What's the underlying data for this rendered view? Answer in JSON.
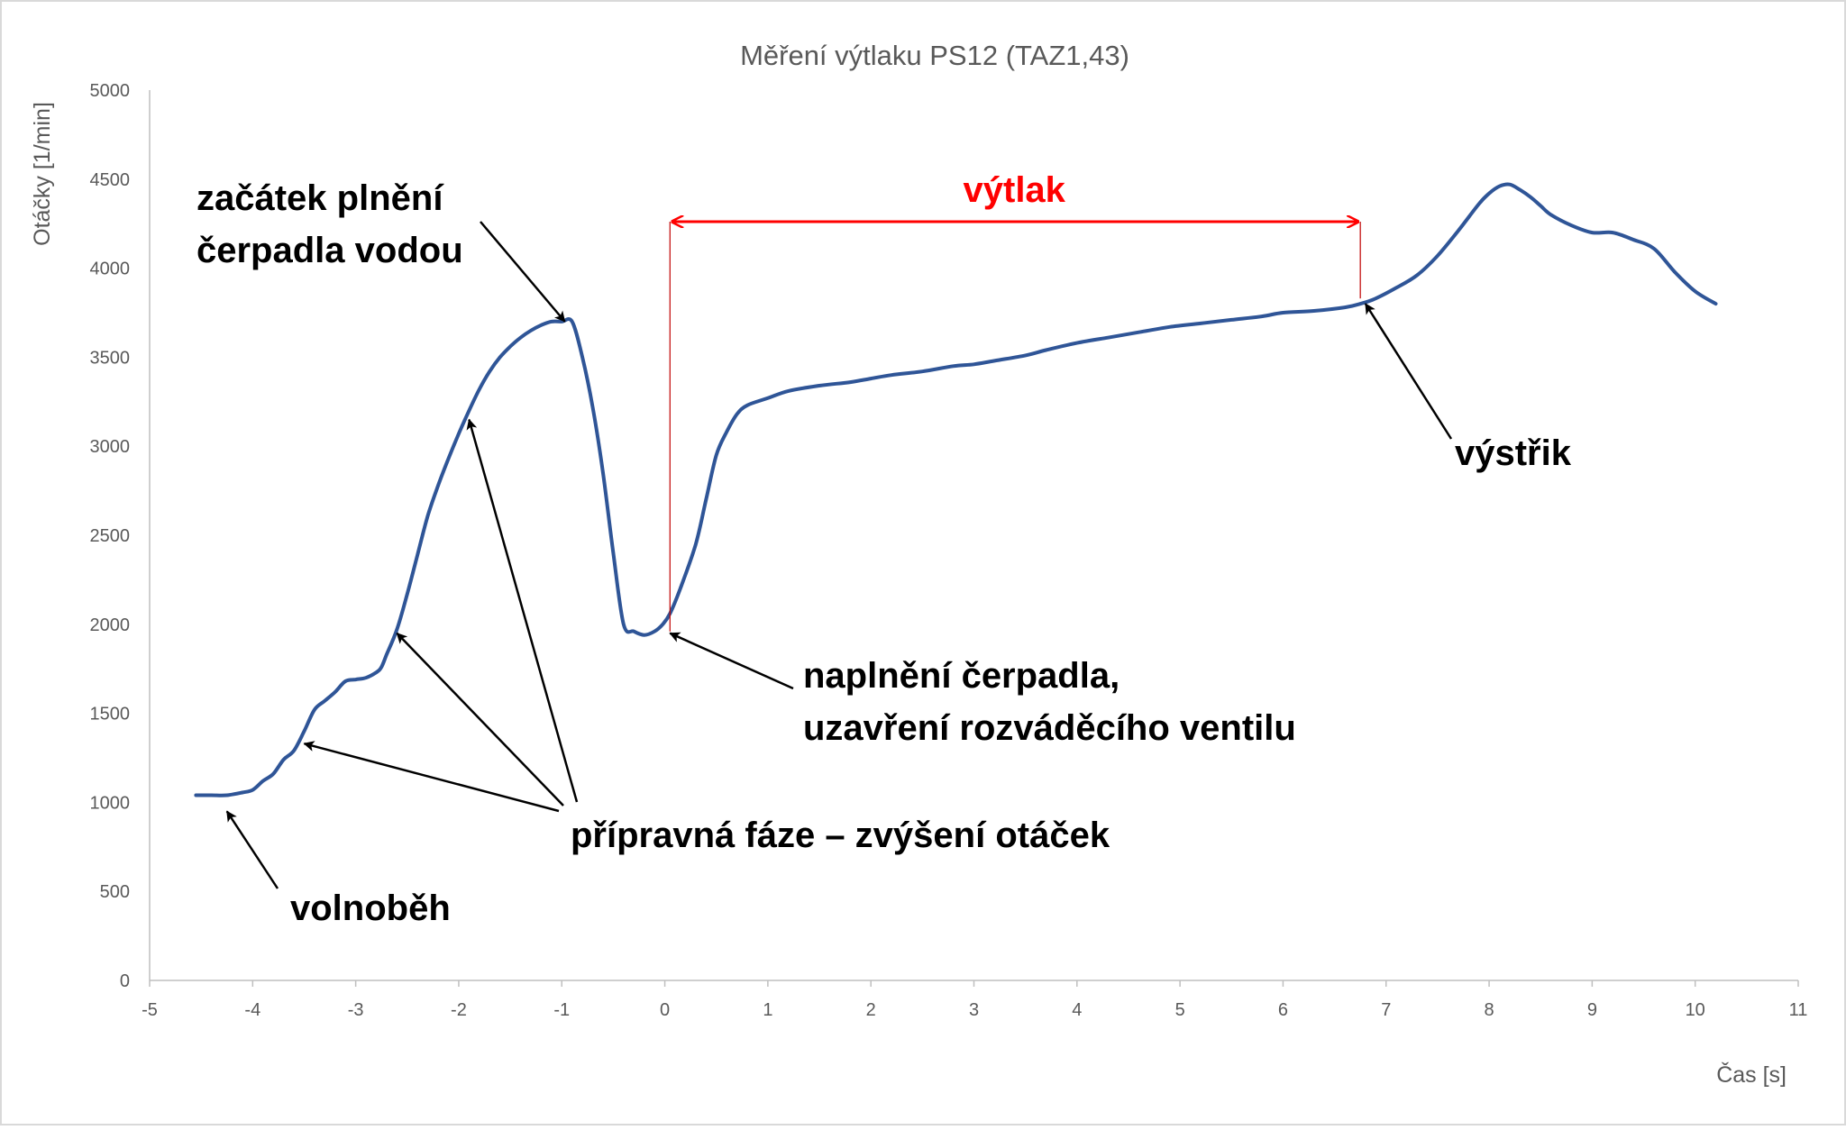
{
  "chart_data": {
    "type": "line",
    "title": "Měření výtlaku PS12 (TAZ1,43)",
    "xlabel": "Čas [s]",
    "ylabel": "Otáčky [1/min]",
    "xlim": [
      -5,
      11
    ],
    "ylim": [
      0,
      5000
    ],
    "xticks": [
      "-5",
      "-4",
      "-3",
      "-2",
      "-1",
      "0",
      "1",
      "2",
      "3",
      "4",
      "5",
      "6",
      "7",
      "8",
      "9",
      "10",
      "11"
    ],
    "yticks": [
      "0",
      "500",
      "1000",
      "1500",
      "2000",
      "2500",
      "3000",
      "3500",
      "4000",
      "4500",
      "5000"
    ],
    "grid": false,
    "legend": "none",
    "series": [
      {
        "color": "#2f5597",
        "x": [
          -4.55,
          -4.4,
          -4.25,
          -4.1,
          -4.0,
          -3.9,
          -3.8,
          -3.7,
          -3.6,
          -3.5,
          -3.4,
          -3.3,
          -3.2,
          -3.1,
          -3.0,
          -2.9,
          -2.8,
          -2.75,
          -2.7,
          -2.6,
          -2.5,
          -2.4,
          -2.3,
          -2.2,
          -2.1,
          -2.0,
          -1.9,
          -1.8,
          -1.7,
          -1.6,
          -1.5,
          -1.4,
          -1.3,
          -1.2,
          -1.1,
          -1.0,
          -0.9,
          -0.8,
          -0.7,
          -0.6,
          -0.5,
          -0.4,
          -0.3,
          -0.2,
          -0.1,
          -0.02,
          0.05,
          0.15,
          0.3,
          0.4,
          0.5,
          0.6,
          0.7,
          0.8,
          1.0,
          1.2,
          1.5,
          1.8,
          2.0,
          2.2,
          2.5,
          2.8,
          3.0,
          3.2,
          3.5,
          3.7,
          4.0,
          4.3,
          4.6,
          4.9,
          5.2,
          5.5,
          5.8,
          6.0,
          6.3,
          6.6,
          6.75,
          6.9,
          7.1,
          7.3,
          7.5,
          7.7,
          7.9,
          8.0,
          8.1,
          8.2,
          8.3,
          8.4,
          8.5,
          8.6,
          8.8,
          9.0,
          9.2,
          9.4,
          9.6,
          9.8,
          10.0,
          10.2
        ],
        "y": [
          1040,
          1040,
          1040,
          1055,
          1070,
          1120,
          1160,
          1240,
          1290,
          1400,
          1520,
          1570,
          1620,
          1680,
          1690,
          1700,
          1730,
          1760,
          1830,
          1970,
          2170,
          2390,
          2610,
          2780,
          2930,
          3070,
          3200,
          3320,
          3420,
          3500,
          3560,
          3610,
          3650,
          3680,
          3700,
          3700,
          3700,
          3500,
          3220,
          2850,
          2400,
          2000,
          1960,
          1940,
          1960,
          2000,
          2060,
          2200,
          2450,
          2700,
          2950,
          3080,
          3180,
          3230,
          3270,
          3310,
          3340,
          3360,
          3380,
          3400,
          3420,
          3450,
          3460,
          3480,
          3510,
          3540,
          3580,
          3610,
          3640,
          3670,
          3690,
          3710,
          3730,
          3750,
          3760,
          3780,
          3800,
          3830,
          3890,
          3960,
          4070,
          4210,
          4360,
          4420,
          4460,
          4470,
          4440,
          4400,
          4350,
          4300,
          4240,
          4200,
          4200,
          4160,
          4110,
          3980,
          3870,
          3800
        ]
      }
    ],
    "annotations": [
      {
        "label_lines": [
          "začátek plnění",
          "čerpadla vodou"
        ],
        "arrows_to": [
          {
            "x": -0.97,
            "y": 3700
          }
        ]
      },
      {
        "label_lines": [
          "naplnění čerpadla,",
          "uzavření rozváděcího ventilu"
        ],
        "arrows_to": [
          {
            "x": 0.05,
            "y": 1950
          }
        ]
      },
      {
        "label_lines": [
          "přípravná fáze – zvýšení otáček"
        ],
        "arrows_to": [
          {
            "x": -3.5,
            "y": 1330
          },
          {
            "x": -2.6,
            "y": 1950
          },
          {
            "x": -1.9,
            "y": 3150
          }
        ]
      },
      {
        "label_lines": [
          "volnoběh"
        ],
        "arrows_to": [
          {
            "x": -4.25,
            "y": 950
          }
        ]
      },
      {
        "label_lines": [
          "výstřik"
        ],
        "arrows_to": [
          {
            "x": 6.8,
            "y": 3800
          }
        ]
      }
    ],
    "range_marker": {
      "label": "výtlak",
      "x_start": 0.05,
      "x_end": 6.75,
      "color": "#ff0000"
    }
  }
}
